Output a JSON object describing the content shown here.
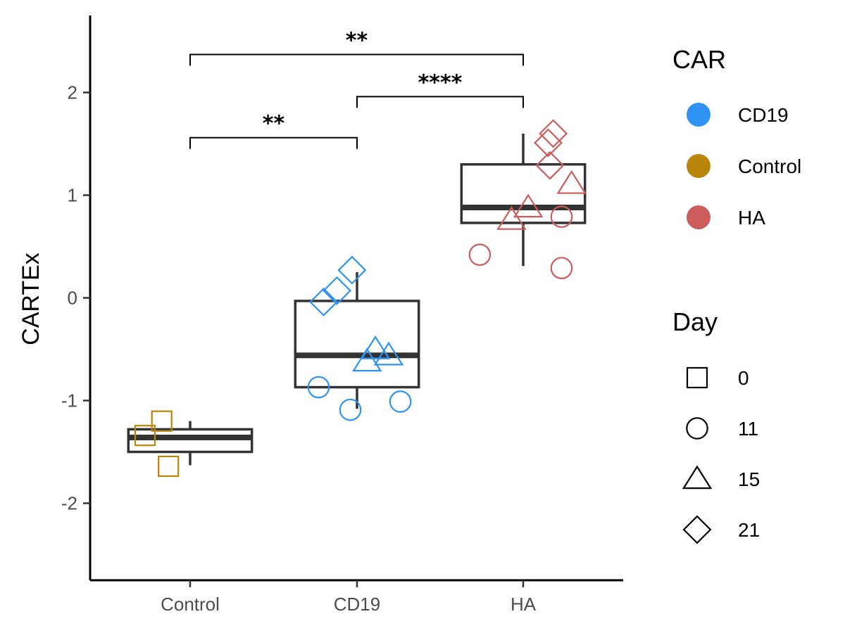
{
  "chart_data": {
    "type": "boxplot",
    "ylabel": "CARTEx",
    "xlabel": "",
    "title": "",
    "ylim": [
      -2.75,
      2.75
    ],
    "yticks": [
      -2,
      -1,
      0,
      1,
      2
    ],
    "categories": [
      "Control",
      "CD19",
      "HA"
    ],
    "boxes": [
      {
        "category": "Control",
        "min": -1.63,
        "q1": -1.5,
        "median": -1.36,
        "q3": -1.28,
        "max": -1.2
      },
      {
        "category": "CD19",
        "min": -1.08,
        "q1": -0.87,
        "median": -0.56,
        "q3": -0.03,
        "max": 0.25
      },
      {
        "category": "HA",
        "min": 0.31,
        "q1": 0.73,
        "median": 0.88,
        "q3": 1.3,
        "max": 1.6
      }
    ],
    "points": [
      {
        "car": "Control",
        "day": "0",
        "x": "Control",
        "y": -1.2,
        "jitter": -0.17
      },
      {
        "car": "Control",
        "day": "0",
        "x": "Control",
        "y": -1.34,
        "jitter": -0.27
      },
      {
        "car": "Control",
        "day": "0",
        "x": "Control",
        "y": -1.64,
        "jitter": -0.13
      },
      {
        "car": "CD19",
        "day": "11",
        "x": "CD19",
        "y": -0.87,
        "jitter": -0.23
      },
      {
        "car": "CD19",
        "day": "11",
        "x": "CD19",
        "y": -1.09,
        "jitter": -0.04
      },
      {
        "car": "CD19",
        "day": "11",
        "x": "CD19",
        "y": -1.01,
        "jitter": 0.26
      },
      {
        "car": "CD19",
        "day": "15",
        "x": "CD19",
        "y": -0.5,
        "jitter": 0.11
      },
      {
        "car": "CD19",
        "day": "15",
        "x": "CD19",
        "y": -0.62,
        "jitter": 0.06
      },
      {
        "car": "CD19",
        "day": "15",
        "x": "CD19",
        "y": -0.56,
        "jitter": 0.19
      },
      {
        "car": "CD19",
        "day": "21",
        "x": "CD19",
        "y": 0.27,
        "jitter": -0.03
      },
      {
        "car": "CD19",
        "day": "21",
        "x": "CD19",
        "y": 0.07,
        "jitter": -0.12
      },
      {
        "car": "CD19",
        "day": "21",
        "x": "CD19",
        "y": -0.04,
        "jitter": -0.2
      },
      {
        "car": "HA",
        "day": "11",
        "x": "HA",
        "y": 0.42,
        "jitter": -0.26
      },
      {
        "car": "HA",
        "day": "11",
        "x": "HA",
        "y": 0.79,
        "jitter": 0.23
      },
      {
        "car": "HA",
        "day": "11",
        "x": "HA",
        "y": 0.29,
        "jitter": 0.23
      },
      {
        "car": "HA",
        "day": "15",
        "x": "HA",
        "y": 0.88,
        "jitter": 0.03
      },
      {
        "car": "HA",
        "day": "15",
        "x": "HA",
        "y": 0.76,
        "jitter": -0.07
      },
      {
        "car": "HA",
        "day": "15",
        "x": "HA",
        "y": 1.11,
        "jitter": 0.29
      },
      {
        "car": "HA",
        "day": "21",
        "x": "HA",
        "y": 1.6,
        "jitter": 0.18
      },
      {
        "car": "HA",
        "day": "21",
        "x": "HA",
        "y": 1.51,
        "jitter": 0.15
      },
      {
        "car": "HA",
        "day": "21",
        "x": "HA",
        "y": 1.29,
        "jitter": 0.16
      }
    ],
    "significance": [
      {
        "from": "Control",
        "to": "CD19",
        "y": 1.56,
        "label": "**"
      },
      {
        "from": "CD19",
        "to": "HA",
        "y": 1.96,
        "label": "****"
      },
      {
        "from": "Control",
        "to": "HA",
        "y": 2.37,
        "label": "**"
      }
    ],
    "legend": {
      "car": {
        "title": "CAR",
        "items": [
          {
            "label": "CD19",
            "color": "#2E93F5"
          },
          {
            "label": "Control",
            "color": "#B8860B"
          },
          {
            "label": "HA",
            "color": "#CD5C5C"
          }
        ]
      },
      "day": {
        "title": "Day",
        "items": [
          {
            "label": "0",
            "shape": "square"
          },
          {
            "label": "11",
            "shape": "circle"
          },
          {
            "label": "15",
            "shape": "triangle"
          },
          {
            "label": "21",
            "shape": "diamond"
          }
        ]
      },
      "placement": "right"
    },
    "grid": false
  }
}
